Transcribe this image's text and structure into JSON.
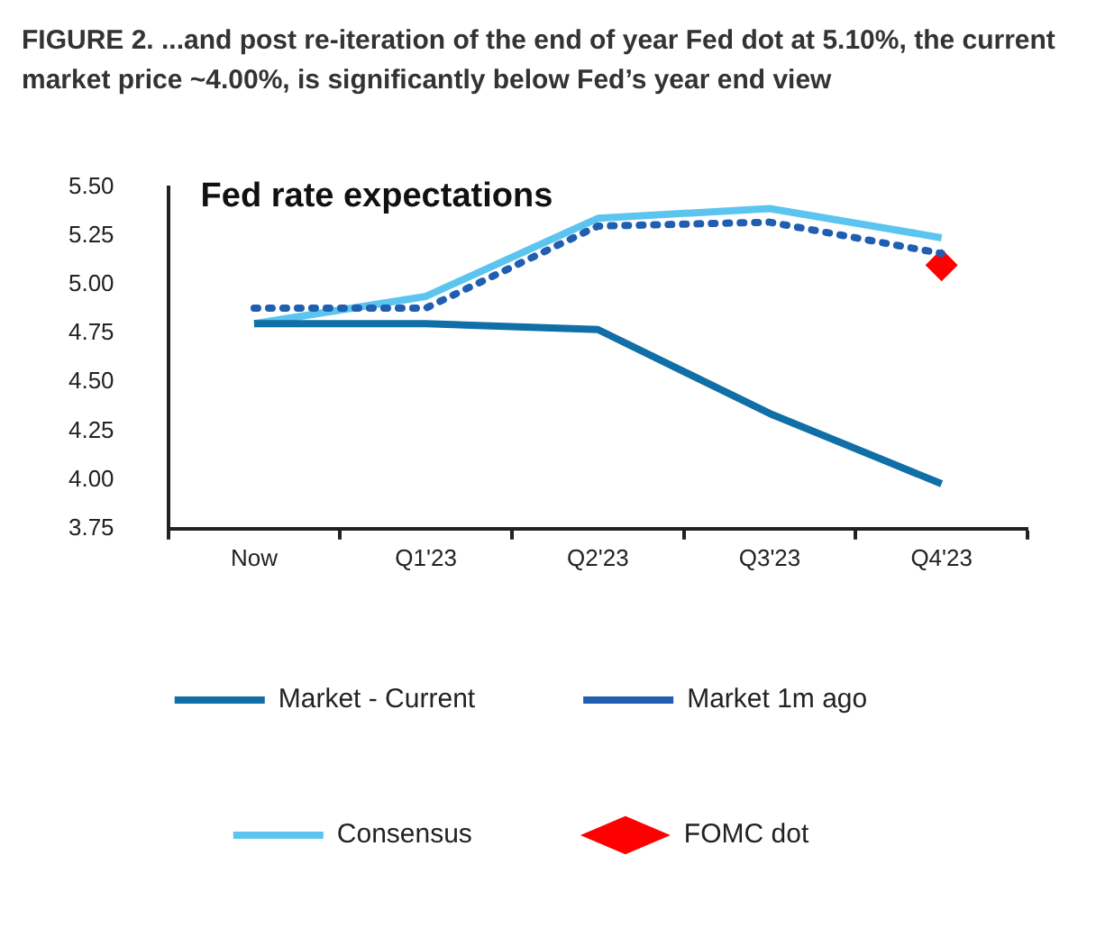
{
  "chart_data": {
    "type": "line",
    "title": "FIGURE 2. ...and post re-iteration of the end of year Fed dot at 5.10%, the current market price ~4.00%, is significantly below Fed’s year end view",
    "subtitle": "Fed rate expectations",
    "categories": [
      "Now",
      "Q1'23",
      "Q2'23",
      "Q3'23",
      "Q4'23"
    ],
    "series": [
      {
        "name": "Market - Current",
        "color": "#0f6fa6",
        "values": [
          4.8,
          4.8,
          4.77,
          4.34,
          3.98
        ]
      },
      {
        "name": "Market 1m ago",
        "color": "#1f5eb0",
        "line_style": "dotted",
        "values": [
          4.88,
          4.88,
          5.3,
          5.32,
          5.16
        ]
      },
      {
        "name": "Consensus",
        "color": "#5cc5ef",
        "values": [
          4.8,
          4.94,
          5.34,
          5.39,
          5.24
        ]
      },
      {
        "name": "FOMC dot",
        "type": "scatter",
        "marker": "diamond",
        "color": "#ff0000",
        "x": [
          "Q4'23"
        ],
        "values": [
          5.1
        ]
      }
    ],
    "ylim": [
      3.75,
      5.5
    ],
    "yticks": [
      {
        "value": 3.75,
        "label": "3.75"
      },
      {
        "value": 4,
        "label": "4.00"
      },
      {
        "value": 4.25,
        "label": "4.25"
      },
      {
        "value": 4.5,
        "label": "4.50"
      },
      {
        "value": 4.75,
        "label": "4.75"
      },
      {
        "value": 5,
        "label": "5.00"
      },
      {
        "value": 5.25,
        "label": "5.25"
      },
      {
        "value": 5.5,
        "label": "5.50"
      }
    ],
    "grid": false,
    "legend": "bottom"
  }
}
